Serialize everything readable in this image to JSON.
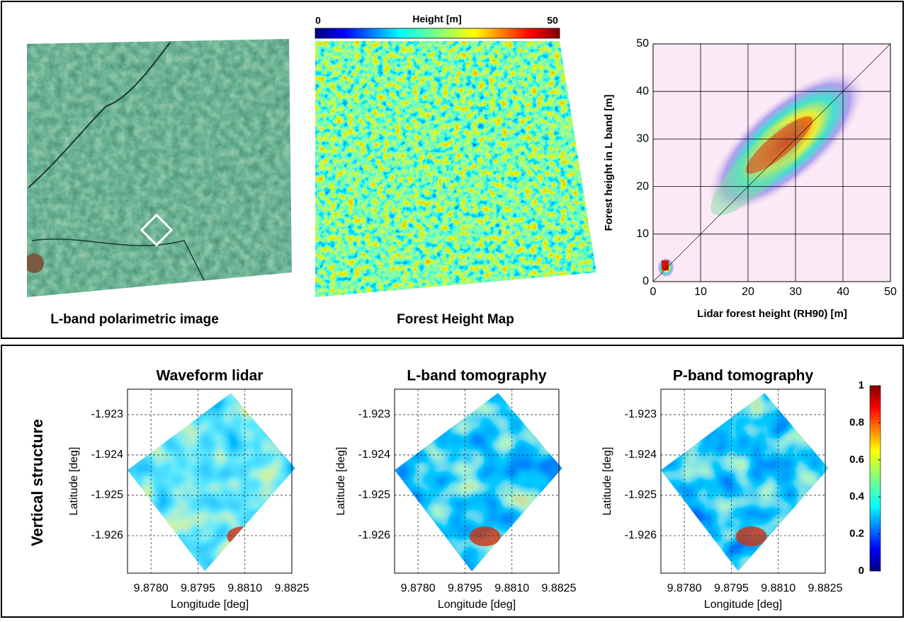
{
  "top": {
    "sar_image": {
      "caption": "L-band polarimetric image"
    },
    "height_map": {
      "caption": "Forest Height Map",
      "colorbar": {
        "title": "Height [m]",
        "lim": [
          0,
          50
        ],
        "ticks": [
          0,
          50
        ]
      }
    },
    "scatter": {
      "xlabel": "Lidar  forest  height (RH90) [m]",
      "ylabel": "Forest  height  in  L band [m]",
      "xlim": [
        0,
        50
      ],
      "ylim": [
        0,
        50
      ],
      "xticks": [
        0,
        10,
        20,
        30,
        40,
        50
      ],
      "yticks": [
        0,
        10,
        20,
        30,
        40,
        50
      ],
      "grid": true
    }
  },
  "bottom": {
    "row_label": "Vertical structure",
    "xlabel": "Longitude [deg]",
    "ylabel": "Latitude [deg]",
    "xlim": [
      9.87725,
      9.8825
    ],
    "ylim": [
      -1.92693,
      -1.92237
    ],
    "xticks": [
      {
        "value": 9.878,
        "label": "9.8780"
      },
      {
        "value": 9.8795,
        "label": "9.8795"
      },
      {
        "value": 9.881,
        "label": "9.8810"
      },
      {
        "value": 9.8825,
        "label": "9.8825"
      }
    ],
    "yticks": [
      -1.923,
      -1.924,
      -1.925,
      -1.926
    ],
    "panels": [
      {
        "title": "Waveform lidar"
      },
      {
        "title": "L-band tomography"
      },
      {
        "title": "P-band tomography"
      }
    ],
    "colorbar": {
      "lim": [
        0,
        1
      ],
      "ticks": [
        0,
        0.2,
        0.4,
        0.6,
        0.8,
        1
      ]
    }
  }
}
